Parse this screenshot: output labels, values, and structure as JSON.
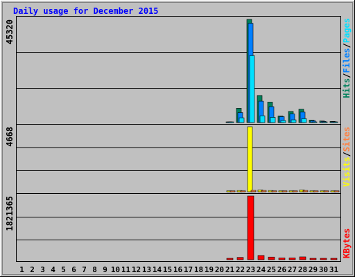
{
  "chart_data": [
    {
      "type": "bar",
      "title": "Daily usage for December 2015",
      "categories": [
        "1",
        "2",
        "3",
        "4",
        "5",
        "6",
        "7",
        "8",
        "9",
        "10",
        "11",
        "12",
        "13",
        "14",
        "15",
        "16",
        "17",
        "18",
        "19",
        "20",
        "21",
        "22",
        "23",
        "24",
        "25",
        "26",
        "27",
        "28",
        "29",
        "30",
        "31"
      ],
      "ylim": [
        0,
        45320
      ],
      "max_label": "45320",
      "series": [
        {
          "name": "Hits",
          "color": "#00805c",
          "values": [
            0,
            0,
            0,
            0,
            0,
            0,
            0,
            0,
            0,
            0,
            0,
            0,
            0,
            0,
            0,
            0,
            0,
            0,
            0,
            0,
            300,
            6300,
            45320,
            11900,
            9000,
            2900,
            4900,
            5900,
            1100,
            700,
            500
          ]
        },
        {
          "name": "Files",
          "color": "#0080ff",
          "values": [
            0,
            0,
            0,
            0,
            0,
            0,
            0,
            0,
            0,
            0,
            0,
            0,
            0,
            0,
            0,
            0,
            0,
            0,
            0,
            0,
            200,
            4400,
            43600,
            9400,
            7000,
            2600,
            3800,
            4600,
            800,
            500,
            400
          ]
        },
        {
          "name": "Pages",
          "color": "#00e0ff",
          "values": [
            0,
            0,
            0,
            0,
            0,
            0,
            0,
            0,
            0,
            0,
            0,
            0,
            0,
            0,
            0,
            0,
            0,
            0,
            0,
            0,
            100,
            2100,
            29400,
            3000,
            2300,
            900,
            1200,
            1700,
            300,
            200,
            200
          ]
        }
      ],
      "legend": [
        {
          "text": "Hits",
          "color": "#00805c"
        },
        {
          "text": "/",
          "color": "#000000"
        },
        {
          "text": "Files",
          "color": "#0080ff"
        },
        {
          "text": "/",
          "color": "#000000"
        },
        {
          "text": "Pages",
          "color": "#00e0ff"
        }
      ]
    },
    {
      "type": "bar",
      "categories": [
        "1",
        "2",
        "3",
        "4",
        "5",
        "6",
        "7",
        "8",
        "9",
        "10",
        "11",
        "12",
        "13",
        "14",
        "15",
        "16",
        "17",
        "18",
        "19",
        "20",
        "21",
        "22",
        "23",
        "24",
        "25",
        "26",
        "27",
        "28",
        "29",
        "30",
        "31"
      ],
      "ylim": [
        0,
        4668
      ],
      "max_label": "4668",
      "series": [
        {
          "name": "Visits",
          "color": "#ffff00",
          "values": [
            0,
            0,
            0,
            0,
            0,
            0,
            0,
            0,
            0,
            0,
            0,
            0,
            0,
            0,
            0,
            0,
            0,
            0,
            0,
            0,
            30,
            90,
            4668,
            140,
            90,
            50,
            50,
            140,
            30,
            30,
            30
          ]
        },
        {
          "name": "Sites",
          "color": "#ff8040",
          "values": [
            0,
            0,
            0,
            0,
            0,
            0,
            0,
            0,
            0,
            0,
            0,
            0,
            0,
            0,
            0,
            0,
            0,
            0,
            0,
            0,
            20,
            60,
            110,
            100,
            70,
            40,
            40,
            100,
            20,
            20,
            20
          ]
        }
      ],
      "legend": [
        {
          "text": "Visits",
          "color": "#ffff00"
        },
        {
          "text": "/",
          "color": "#000000"
        },
        {
          "text": "Sites",
          "color": "#ff8040"
        }
      ]
    },
    {
      "type": "bar",
      "categories": [
        "1",
        "2",
        "3",
        "4",
        "5",
        "6",
        "7",
        "8",
        "9",
        "10",
        "11",
        "12",
        "13",
        "14",
        "15",
        "16",
        "17",
        "18",
        "19",
        "20",
        "21",
        "22",
        "23",
        "24",
        "25",
        "26",
        "27",
        "28",
        "29",
        "30",
        "31"
      ],
      "ylim": [
        0,
        1821365
      ],
      "max_label": "1821365",
      "series": [
        {
          "name": "KBytes",
          "color": "#ff0000",
          "values": [
            0,
            0,
            0,
            0,
            0,
            0,
            0,
            0,
            0,
            0,
            0,
            0,
            0,
            0,
            0,
            0,
            0,
            0,
            0,
            0,
            20000,
            65000,
            1821365,
            120000,
            75000,
            50000,
            50000,
            80000,
            25000,
            20000,
            20000
          ]
        }
      ],
      "legend": [
        {
          "text": "KBytes",
          "color": "#ff0000"
        }
      ]
    }
  ]
}
